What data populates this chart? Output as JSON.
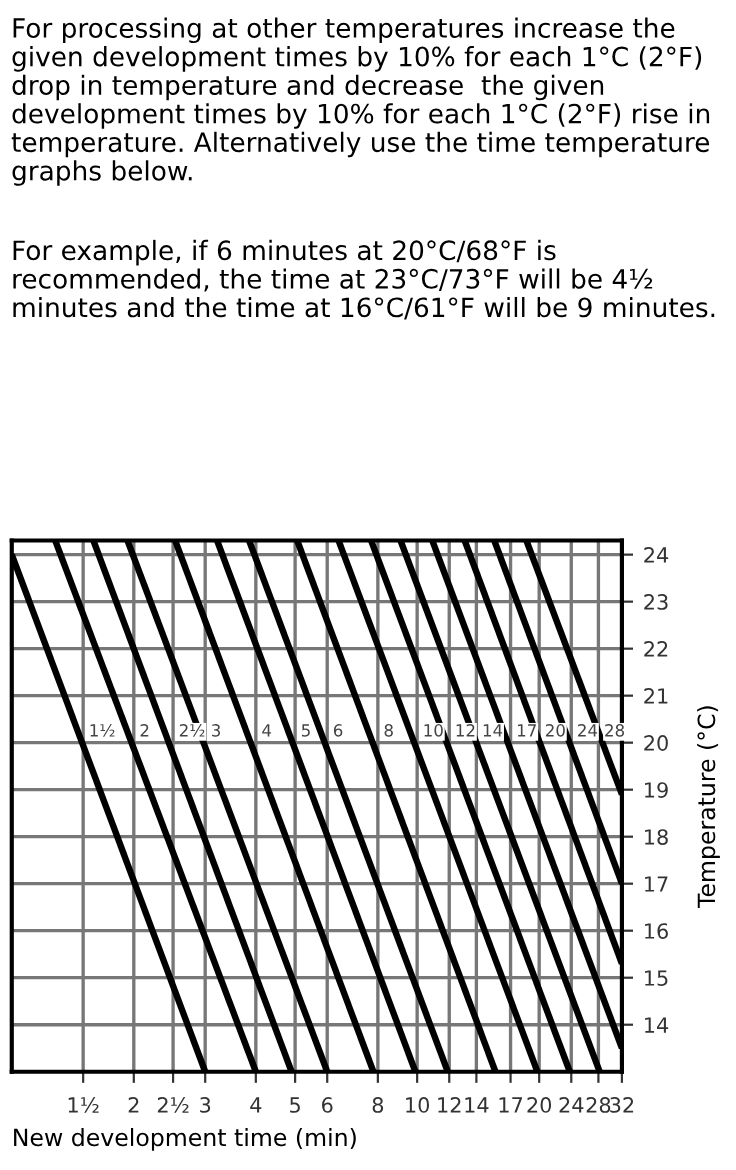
{
  "chart_data": {
    "type": "line",
    "xlabel": "New development time (min)",
    "ylabel": "Temperature (°C)",
    "annotations": [
      "For processing at other temperatures increase the given development times by 10% for each 1°C (2°F) drop in temperature and decrease  the given development times by 10% for each 1°C (2°F) rise in temperature. Alternatively use the time temperature graphs below.",
      "For example, if 6 minutes at 20°C/68°F is recommended, the time at 23°C/73°F will be 4½ minutes and the time at 16°C/61°F will be 9 minutes.",
      {
        "text": "1½",
        "x": 1.5,
        "y": 20
      },
      {
        "text": "2",
        "x": 2,
        "y": 20
      },
      {
        "text": "2½",
        "x": 2.5,
        "y": 20
      },
      {
        "text": "3",
        "x": 3,
        "y": 20
      },
      {
        "text": "4",
        "x": 4,
        "y": 20
      },
      {
        "text": "5",
        "x": 5,
        "y": 20
      },
      {
        "text": "6",
        "x": 6,
        "y": 20
      },
      {
        "text": "8",
        "x": 8,
        "y": 20
      },
      {
        "text": "10",
        "x": 10,
        "y": 20
      },
      {
        "text": "12",
        "x": 12,
        "y": 20
      },
      {
        "text": "14",
        "x": 14,
        "y": 20
      },
      {
        "text": "17",
        "x": 17,
        "y": 20
      },
      {
        "text": "20",
        "x": 20,
        "y": 20
      },
      {
        "text": "24",
        "x": 24,
        "y": 20
      },
      {
        "text": "28",
        "x": 28,
        "y": 20
      }
    ],
    "log": "x",
    "xlim": [
      1,
      32
    ],
    "ylim": [
      13,
      24.3
    ],
    "xticks": [
      {
        "value": 1.5,
        "label": "1½"
      },
      2,
      {
        "value": 2.5,
        "label": "2½"
      },
      3,
      4,
      5,
      6,
      8,
      10,
      12,
      14,
      17,
      20,
      24,
      28,
      32
    ],
    "yticks": [
      14,
      15,
      16,
      17,
      18,
      19,
      20,
      21,
      22,
      23,
      24
    ],
    "grid": true,
    "series": [
      {
        "color": "#000000",
        "x": [
          1,
          3.0
        ],
        "values": [
          24.0,
          13
        ]
      },
      {
        "color": "#000000",
        "x": [
          1.28,
          4.0
        ],
        "values": [
          24.3,
          13
        ]
      },
      {
        "color": "#000000",
        "x": [
          1.59,
          4.9
        ],
        "values": [
          24.3,
          13
        ]
      },
      {
        "color": "#000000",
        "x": [
          1.93,
          6.0
        ],
        "values": [
          24.3,
          13
        ]
      },
      {
        "color": "#000000",
        "x": [
          2.53,
          7.8
        ],
        "values": [
          24.3,
          13
        ]
      },
      {
        "color": "#000000",
        "x": [
          3.21,
          9.9
        ],
        "values": [
          24.3,
          13
        ]
      },
      {
        "color": "#000000",
        "x": [
          3.85,
          11.9
        ],
        "values": [
          24.3,
          13
        ]
      },
      {
        "color": "#000000",
        "x": [
          5.06,
          15.6
        ],
        "values": [
          24.3,
          13
        ]
      },
      {
        "color": "#000000",
        "x": [
          6.4,
          19.8
        ],
        "values": [
          24.3,
          13
        ]
      },
      {
        "color": "#000000",
        "x": [
          7.7,
          23.8
        ],
        "values": [
          24.3,
          13
        ]
      },
      {
        "color": "#000000",
        "x": [
          9.1,
          28.2
        ],
        "values": [
          24.3,
          13
        ]
      },
      {
        "color": "#000000",
        "x": [
          10.9,
          32
        ],
        "values": [
          24.3,
          13.5
        ]
      },
      {
        "color": "#000000",
        "x": [
          13.1,
          32
        ],
        "values": [
          24.3,
          15.3
        ]
      },
      {
        "color": "#000000",
        "x": [
          15.5,
          32
        ],
        "values": [
          24.3,
          17.0
        ]
      },
      {
        "color": "#000000",
        "x": [
          18.6,
          32
        ],
        "values": [
          24.3,
          18.9
        ]
      }
    ]
  }
}
